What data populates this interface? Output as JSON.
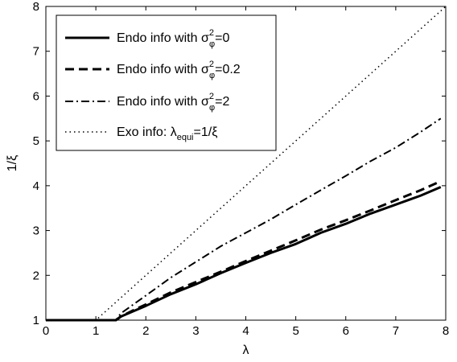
{
  "chart_data": {
    "type": "line",
    "xlabel": "λ",
    "ylabel": "1/ξ",
    "xlim": [
      0,
      8
    ],
    "ylim": [
      1,
      8
    ],
    "xticks": [
      "0",
      "1",
      "2",
      "3",
      "4",
      "5",
      "6",
      "7",
      "8"
    ],
    "yticks": [
      "1",
      "2",
      "3",
      "4",
      "5",
      "6",
      "7",
      "8"
    ],
    "grid": false,
    "legend_position": "top-left",
    "series": [
      {
        "name": "Endo info with σφ²=0",
        "legend": {
          "prefix": "Endo info with σ",
          "sup": "2",
          "sub": "φ",
          "suffix": "=0"
        },
        "style": "solid",
        "x": [
          0,
          0.5,
          1.0,
          1.4,
          1.5,
          1.75,
          2.0,
          2.5,
          3.0,
          3.5,
          4.0,
          4.5,
          5.0,
          5.5,
          6.0,
          6.5,
          7.0,
          7.5,
          7.9
        ],
        "y": [
          1,
          1,
          1,
          1,
          1.08,
          1.2,
          1.32,
          1.58,
          1.8,
          2.05,
          2.28,
          2.5,
          2.7,
          2.95,
          3.15,
          3.38,
          3.58,
          3.78,
          3.97
        ]
      },
      {
        "name": "Endo info with σφ²=0.2",
        "legend": {
          "prefix": "Endo info with σ",
          "sup": "2",
          "sub": "φ",
          "suffix": "=0.2"
        },
        "style": "dashed",
        "x": [
          0,
          0.5,
          1.0,
          1.4,
          1.5,
          1.75,
          2.0,
          2.5,
          3.0,
          3.5,
          4.0,
          4.5,
          5.0,
          5.5,
          6.0,
          6.5,
          7.0,
          7.5,
          7.9
        ],
        "y": [
          1,
          1,
          1,
          1,
          1.08,
          1.22,
          1.35,
          1.62,
          1.85,
          2.08,
          2.32,
          2.55,
          2.78,
          3.02,
          3.23,
          3.45,
          3.68,
          3.9,
          4.1
        ]
      },
      {
        "name": "Endo info with σφ²=2",
        "legend": {
          "prefix": "Endo info with σ",
          "sup": "2",
          "sub": "φ",
          "suffix": "=2"
        },
        "style": "dashdot",
        "x": [
          0,
          0.5,
          1.0,
          1.4,
          1.5,
          1.75,
          2.0,
          2.5,
          3.0,
          3.5,
          4.0,
          4.5,
          5.0,
          5.5,
          6.0,
          6.5,
          7.0,
          7.5,
          7.9
        ],
        "y": [
          1,
          1,
          1,
          1,
          1.15,
          1.35,
          1.55,
          1.95,
          2.3,
          2.65,
          2.95,
          3.25,
          3.58,
          3.9,
          4.22,
          4.55,
          4.85,
          5.2,
          5.5
        ]
      },
      {
        "name": "Exo info: λequi=1/ξ",
        "legend": {
          "prefix": "Exo info: λ",
          "sub": "equi",
          "suffix": "=1/ξ"
        },
        "style": "dotted",
        "x": [
          0,
          1,
          8
        ],
        "y": [
          1,
          1,
          8
        ]
      }
    ]
  }
}
